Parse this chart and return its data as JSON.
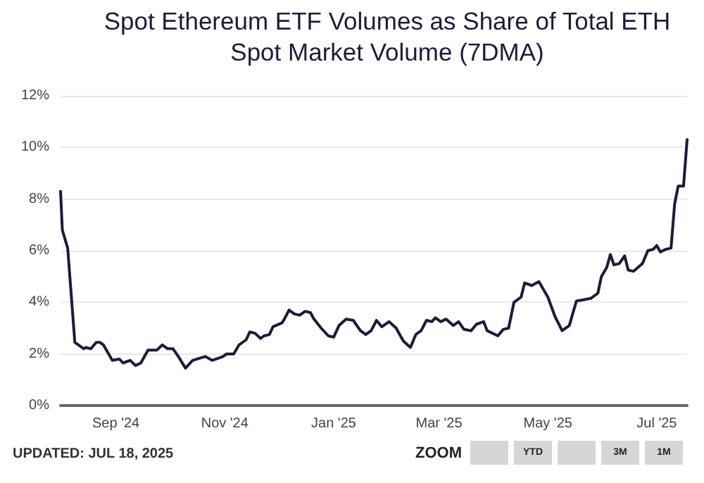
{
  "chart_data": {
    "type": "line",
    "title": "Spot Ethereum ETF Volumes as Share of Total ETH Spot Market Volume (7DMA)",
    "x": [
      "2024-08-01",
      "2024-08-02",
      "2024-08-05",
      "2024-08-09",
      "2024-08-11",
      "2024-08-14",
      "2024-08-15",
      "2024-08-18",
      "2024-08-21",
      "2024-08-23",
      "2024-08-25",
      "2024-08-30",
      "2024-09-03",
      "2024-09-05",
      "2024-09-09",
      "2024-09-12",
      "2024-09-15",
      "2024-09-19",
      "2024-09-24",
      "2024-09-27",
      "2024-09-30",
      "2024-10-03",
      "2024-10-06",
      "2024-10-10",
      "2024-10-14",
      "2024-10-21",
      "2024-10-25",
      "2024-10-31",
      "2024-11-02",
      "2024-11-06",
      "2024-11-09",
      "2024-11-13",
      "2024-11-15",
      "2024-11-18",
      "2024-11-21",
      "2024-11-23",
      "2024-11-26",
      "2024-11-28",
      "2024-12-03",
      "2024-12-04",
      "2024-12-07",
      "2024-12-10",
      "2024-12-13",
      "2024-12-16",
      "2024-12-19",
      "2024-12-21",
      "2024-12-25",
      "2024-12-29",
      "2025-01-01",
      "2025-01-04",
      "2025-01-08",
      "2025-01-12",
      "2025-01-16",
      "2025-01-19",
      "2025-01-22",
      "2025-01-25",
      "2025-01-28",
      "2025-02-01",
      "2025-02-05",
      "2025-02-09",
      "2025-02-13",
      "2025-02-16",
      "2025-02-19",
      "2025-02-22",
      "2025-02-25",
      "2025-02-27",
      "2025-03-02",
      "2025-03-05",
      "2025-03-09",
      "2025-03-12",
      "2025-03-15",
      "2025-03-19",
      "2025-03-22",
      "2025-03-26",
      "2025-03-28",
      "2025-04-03",
      "2025-04-06",
      "2025-04-09",
      "2025-04-12",
      "2025-04-16",
      "2025-04-18",
      "2025-04-22",
      "2025-04-26",
      "2025-05-01",
      "2025-05-05",
      "2025-05-09",
      "2025-05-13",
      "2025-05-17",
      "2025-05-21",
      "2025-05-25",
      "2025-05-29",
      "2025-05-31",
      "2025-06-03",
      "2025-06-05",
      "2025-06-07",
      "2025-06-10",
      "2025-06-13",
      "2025-06-15",
      "2025-06-18",
      "2025-06-23",
      "2025-06-26",
      "2025-06-29",
      "2025-07-01",
      "2025-07-03",
      "2025-07-06",
      "2025-07-09",
      "2025-07-11",
      "2025-07-13",
      "2025-07-16",
      "2025-07-18"
    ],
    "series": [
      {
        "color": "#1c1b3b",
        "values": [
          8.3,
          6.8,
          6.1,
          2.45,
          2.35,
          2.2,
          2.25,
          2.2,
          2.45,
          2.45,
          2.35,
          1.75,
          1.8,
          1.65,
          1.75,
          1.55,
          1.65,
          2.15,
          2.15,
          2.35,
          2.2,
          2.2,
          1.9,
          1.45,
          1.75,
          1.9,
          1.75,
          1.9,
          2.0,
          2.0,
          2.35,
          2.55,
          2.85,
          2.8,
          2.6,
          2.7,
          2.75,
          3.05,
          3.2,
          3.3,
          3.7,
          3.55,
          3.5,
          3.65,
          3.6,
          3.35,
          3.0,
          2.7,
          2.65,
          3.1,
          3.35,
          3.3,
          2.9,
          2.75,
          2.9,
          3.3,
          3.05,
          3.25,
          3.0,
          2.5,
          2.25,
          2.75,
          2.9,
          3.3,
          3.25,
          3.4,
          3.25,
          3.35,
          3.1,
          3.25,
          2.95,
          2.9,
          3.15,
          3.25,
          2.9,
          2.7,
          2.95,
          3.0,
          4.0,
          4.2,
          4.75,
          4.65,
          4.8,
          4.2,
          3.45,
          2.9,
          3.1,
          4.05,
          4.1,
          4.15,
          4.35,
          5.0,
          5.35,
          5.85,
          5.45,
          5.5,
          5.8,
          5.25,
          5.2,
          5.5,
          6.0,
          6.05,
          6.2,
          5.95,
          6.05,
          6.1,
          7.8,
          8.5,
          8.5,
          10.3
        ]
      }
    ],
    "xlim": [
      "2024-08-01",
      "2025-07-18"
    ],
    "xticks": [
      {
        "value": "2024-09-01",
        "label": "Sep '24"
      },
      {
        "value": "2024-11-01",
        "label": "Nov '24"
      },
      {
        "value": "2025-01-01",
        "label": "Jan '25"
      },
      {
        "value": "2025-03-01",
        "label": "Mar '25"
      },
      {
        "value": "2025-05-01",
        "label": "May '25"
      },
      {
        "value": "2025-07-01",
        "label": "Jul '25"
      }
    ],
    "ylim": [
      0,
      12
    ],
    "yticks": [
      {
        "value": 0,
        "label": "0%"
      },
      {
        "value": 2,
        "label": "2%"
      },
      {
        "value": 4,
        "label": "4%"
      },
      {
        "value": 6,
        "label": "6%"
      },
      {
        "value": 8,
        "label": "8%"
      },
      {
        "value": 10,
        "label": "10%"
      },
      {
        "value": 12,
        "label": "12%"
      }
    ],
    "grid": "y",
    "marker": "none",
    "line_style": "solid",
    "annotations": [
      "UPDATED: JUL 18, 2025",
      "ZOOM",
      "YTD",
      "3M",
      "1M"
    ]
  }
}
